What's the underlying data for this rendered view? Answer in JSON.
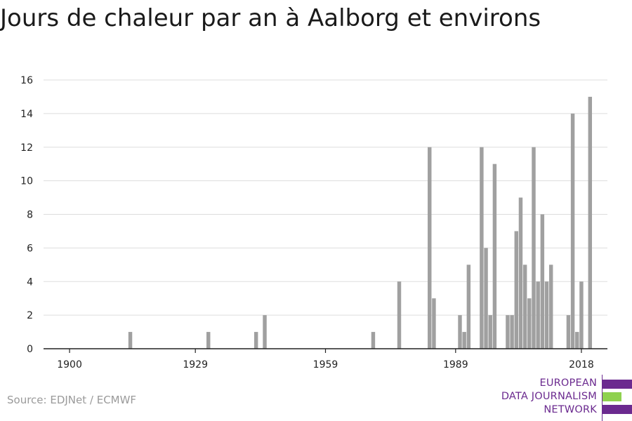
{
  "title": "Jours de chaleur par an à Aalborg et environs",
  "source": "Source: EDJNet / ECMWF",
  "logo": {
    "lines": [
      "EUROPEAN",
      "DATA JOURNALISM",
      "NETWORK"
    ],
    "colors": {
      "purple": "#6b2a8f",
      "green": "#8fd14f"
    }
  },
  "colors": {
    "bar": "#a0a0a0",
    "grid": "#dddddd",
    "axis": "#222222",
    "text": "#222222"
  },
  "chart_data": {
    "type": "bar",
    "title": "Jours de chaleur par an à Aalborg et environs",
    "xlabel": "",
    "ylabel": "",
    "xlim": [
      1894,
      2024
    ],
    "ylim": [
      0,
      16
    ],
    "x_ticks": [
      1900,
      1929,
      1959,
      1989,
      2018
    ],
    "y_ticks": [
      0,
      2,
      4,
      6,
      8,
      10,
      12,
      14,
      16
    ],
    "grid": true,
    "x": [
      1914,
      1932,
      1943,
      1945,
      1970,
      1976,
      1983,
      1984,
      1990,
      1991,
      1992,
      1995,
      1996,
      1997,
      1998,
      2001,
      2002,
      2003,
      2004,
      2005,
      2006,
      2007,
      2008,
      2009,
      2010,
      2011,
      2015,
      2016,
      2017,
      2018
    ],
    "values": [
      1,
      1,
      1,
      2,
      1,
      4,
      12,
      3,
      2,
      1,
      5,
      12,
      6,
      2,
      11,
      2,
      2,
      7,
      9,
      5,
      3,
      12,
      4,
      8,
      4,
      5,
      2,
      14,
      1,
      4
    ]
  },
  "bars_note_last": {
    "x": 2020,
    "value": 15
  }
}
